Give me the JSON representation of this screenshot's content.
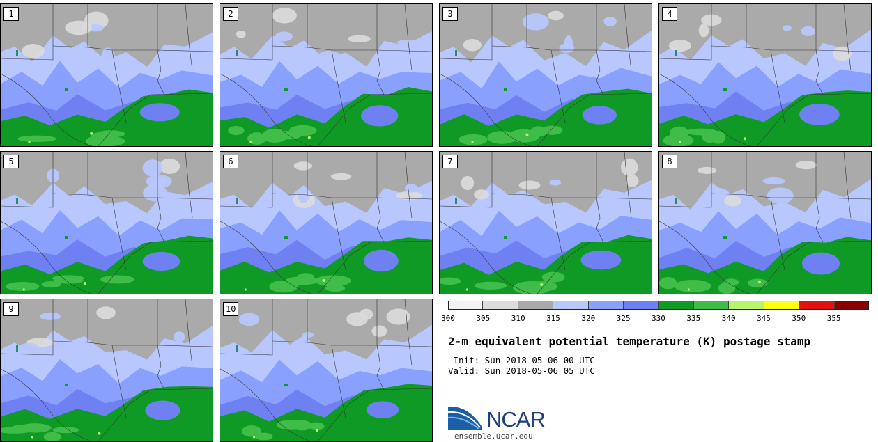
{
  "panels": [
    {
      "label": "1",
      "seed": 1
    },
    {
      "label": "2",
      "seed": 2
    },
    {
      "label": "3",
      "seed": 3
    },
    {
      "label": "4",
      "seed": 4
    },
    {
      "label": "5",
      "seed": 5
    },
    {
      "label": "6",
      "seed": 6
    },
    {
      "label": "7",
      "seed": 7
    },
    {
      "label": "8",
      "seed": 8
    },
    {
      "label": "9",
      "seed": 9
    },
    {
      "label": "10",
      "seed": 10
    }
  ],
  "colorbar": {
    "ticks": [
      "300",
      "305",
      "310",
      "315",
      "320",
      "325",
      "330",
      "335",
      "340",
      "345",
      "350",
      "355"
    ],
    "colors": [
      "#f2f2f2",
      "#dcdcdc",
      "#aaaaaa",
      "#b8c8ff",
      "#8aa0ff",
      "#6f80f2",
      "#0e9a24",
      "#3fbd48",
      "#b8f56a",
      "#ffff10",
      "#e21010",
      "#8a0000"
    ]
  },
  "title": "2-m equivalent potential temperature (K) postage stamp",
  "init": " Init: Sun 2018-05-06 00 UTC",
  "valid": "Valid: Sun 2018-05-06 05 UTC",
  "logo": {
    "text": "NCAR",
    "url": "ensemble.ucar.edu"
  }
}
